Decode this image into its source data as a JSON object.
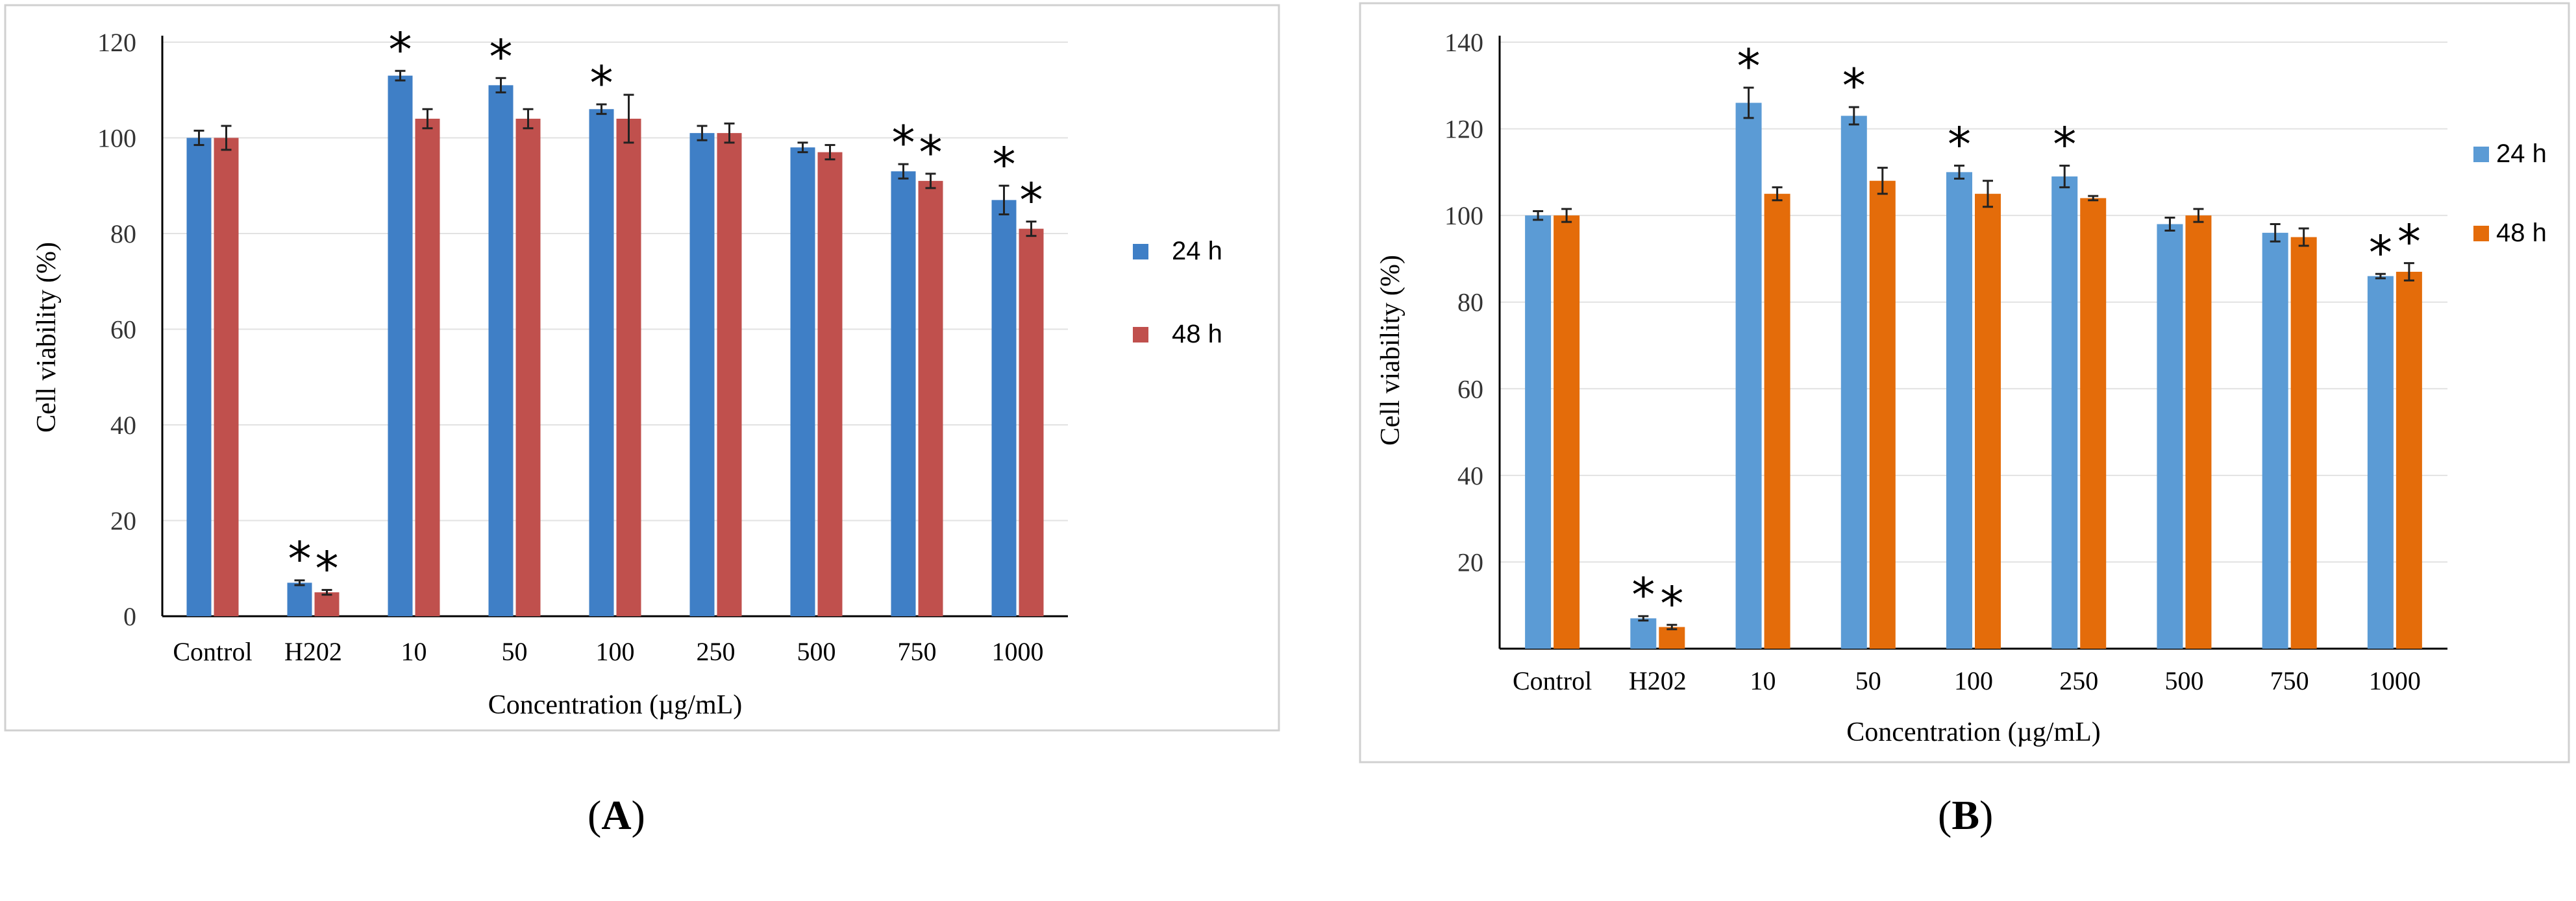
{
  "chart_data": [
    {
      "type": "bar",
      "title": "",
      "xlabel": "Concentration (µg/mL)",
      "ylabel": "Cell viability (%)",
      "ylim": [
        0,
        120
      ],
      "yticks": [
        "0",
        "20",
        "40",
        "60",
        "80",
        "100",
        "120"
      ],
      "categories": [
        "Control",
        "H202",
        "10",
        "50",
        "100",
        "250",
        "500",
        "750",
        "1000"
      ],
      "series": [
        {
          "name": "24 h",
          "color": "#3F7FC6",
          "values": [
            100,
            7,
            113,
            111,
            106,
            101,
            98,
            93,
            87
          ],
          "errors": [
            1.5,
            0.5,
            1.0,
            1.5,
            1.0,
            1.5,
            1.0,
            1.5,
            3.0
          ],
          "significant": [
            false,
            true,
            true,
            true,
            true,
            false,
            false,
            true,
            true
          ]
        },
        {
          "name": "48 h",
          "color": "#C0504D",
          "values": [
            100,
            5,
            104,
            104,
            104,
            101,
            97,
            91,
            81
          ],
          "errors": [
            2.5,
            0.5,
            2.0,
            2.0,
            5.0,
            2.0,
            1.5,
            1.5,
            1.5
          ],
          "significant": [
            false,
            true,
            false,
            false,
            false,
            false,
            false,
            true,
            true
          ]
        }
      ],
      "grid": true,
      "legend": "right",
      "asterisk_label": "*"
    },
    {
      "type": "bar",
      "title": "",
      "xlabel": "Concentration (µg/mL)",
      "ylabel": "Cell viability (%)",
      "ylim": [
        0,
        140
      ],
      "yticks": [
        "",
        "20",
        "40",
        "60",
        "80",
        "100",
        "120",
        "140"
      ],
      "categories": [
        "Control",
        "H202",
        "10",
        "50",
        "100",
        "250",
        "500",
        "750",
        "1000"
      ],
      "series": [
        {
          "name": "24 h",
          "color": "#5B9BD5",
          "values": [
            100,
            7,
            126,
            123,
            110,
            109,
            98,
            96,
            86
          ],
          "errors": [
            1.0,
            0.5,
            3.5,
            2.0,
            1.5,
            2.5,
            1.5,
            2.0,
            0.5
          ],
          "significant": [
            false,
            true,
            true,
            true,
            true,
            true,
            false,
            false,
            true
          ]
        },
        {
          "name": "48 h",
          "color": "#E46C0A",
          "values": [
            100,
            5,
            105,
            108,
            105,
            104,
            100,
            95,
            87
          ],
          "errors": [
            1.5,
            0.5,
            1.5,
            3.0,
            3.0,
            0.5,
            1.5,
            2.0,
            2.0
          ],
          "significant": [
            false,
            true,
            false,
            false,
            false,
            false,
            false,
            false,
            true
          ]
        }
      ],
      "grid": true,
      "legend": "right",
      "asterisk_label": "*"
    }
  ],
  "captions": {
    "a": "A",
    "b": "B"
  }
}
